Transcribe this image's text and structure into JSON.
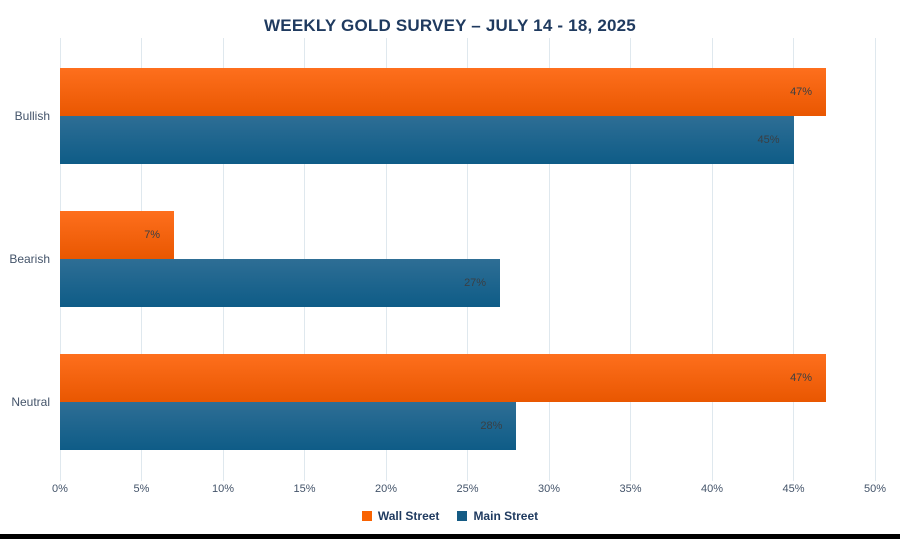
{
  "title": "WEEKLY GOLD SURVEY – JULY 14 - 18, 2025",
  "chart_data": {
    "type": "bar",
    "orientation": "horizontal",
    "title": "WEEKLY GOLD SURVEY – JULY 14 - 18, 2025",
    "categories": [
      "Bullish",
      "Bearish",
      "Neutral"
    ],
    "series": [
      {
        "name": "Wall Street",
        "values": [
          47,
          7,
          47
        ],
        "data_labels": [
          "47%",
          "7%",
          "47%"
        ],
        "color_top": "#fe6f1d",
        "color_bottom": "#e95701",
        "legend_color": "#f96302"
      },
      {
        "name": "Main Street",
        "values": [
          45,
          27,
          28
        ],
        "data_labels": [
          "45%",
          "27%",
          "28%"
        ],
        "color_top": "#2e6e95",
        "color_bottom": "#0e5c87",
        "legend_color": "#155b84"
      }
    ],
    "xlim": [
      0,
      50
    ],
    "x_ticks": [
      "0%",
      "5%",
      "10%",
      "15%",
      "20%",
      "25%",
      "30%",
      "35%",
      "40%",
      "45%",
      "50%"
    ],
    "grid": true,
    "gridline_color": "#dfe8ee",
    "legend_position": "bottom"
  },
  "colors": {
    "title_text": "#1f3a5f",
    "axis_text": "#44546a",
    "data_label_text": "#3a3f44",
    "bottom_border": "#000000",
    "background": "#ffffff"
  }
}
